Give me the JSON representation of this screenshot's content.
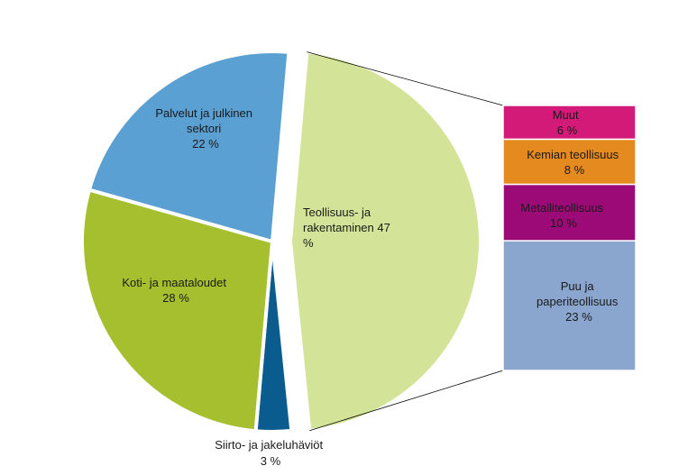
{
  "chart_data": {
    "type": "pie",
    "subtype": "pie-of-pie",
    "slices": [
      {
        "label_lines": [
          "Teollisuus- ja",
          "rakentaminen  47",
          "%"
        ],
        "value": 47,
        "color": "#d3e398",
        "exploded": true
      },
      {
        "label_lines": [
          "Siirto- ja jakeluhäviöt",
          "3 %"
        ],
        "value": 3,
        "color": "#0b5c8e",
        "exploded": false
      },
      {
        "label_lines": [
          "Koti- ja maataloudet",
          "28 %"
        ],
        "value": 28,
        "color": "#a6bf2f",
        "exploded": false
      },
      {
        "label_lines": [
          "Palvelut  ja julkinen",
          "sektori",
          "22 %"
        ],
        "value": 22,
        "color": "#5aa0d2",
        "exploded": false
      }
    ],
    "breakdown": {
      "of": "Teollisuus- ja rakentaminen",
      "segments": [
        {
          "label_lines": [
            "Muut",
            "6 %"
          ],
          "value": 6,
          "color": "#d31a78"
        },
        {
          "label_lines": [
            "Kemian teollisuus",
            "8 %"
          ],
          "value": 8,
          "color": "#e58a1e"
        },
        {
          "label_lines": [
            "Metalliteollisuus",
            "10 %"
          ],
          "value": 10,
          "color": "#9c0a78"
        },
        {
          "label_lines": [
            "Puu ja",
            "paperiteollisuus",
            "23 %"
          ],
          "value": 23,
          "color": "#8aa6cf"
        }
      ]
    }
  }
}
